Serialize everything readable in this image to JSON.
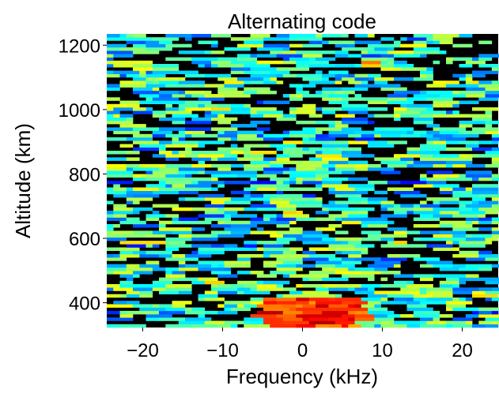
{
  "chart_data": {
    "type": "heatmap",
    "title": "Alternating code",
    "xlabel": "Frequency (kHz)",
    "ylabel": "Altitude (km)",
    "xlim": [
      -24.5,
      24.5
    ],
    "ylim": [
      323,
      1235
    ],
    "xticks": [
      -20,
      -10,
      0,
      10,
      20
    ],
    "yticks": [
      400,
      600,
      800,
      1000,
      1200
    ],
    "xtick_labels": [
      "−20",
      "−10",
      "0",
      "10",
      "20"
    ],
    "ytick_labels": [
      "400",
      "600",
      "800",
      "1000",
      "1200"
    ],
    "grid": false,
    "colormap": "jet-on-black",
    "colors": {
      "background": "#000000",
      "low": "#000080",
      "mid": "#00ffff",
      "high": "#ff0000",
      "peak": "#ffffff"
    },
    "value_range": [
      0,
      1
    ],
    "features": [
      {
        "label": "strong return near 0 kHz at lowest altitudes",
        "x": [
          -5,
          8
        ],
        "y": [
          323,
          420
        ],
        "level": 0.95
      },
      {
        "label": "bright spot",
        "x": [
          7,
          9
        ],
        "y": [
          1135,
          1150
        ],
        "level": 0.85
      },
      {
        "label": "bright spot",
        "x": [
          -2,
          0
        ],
        "y": [
          670,
          685
        ],
        "level": 0.8
      },
      {
        "label": "bright spot",
        "x": [
          -13,
          -10
        ],
        "y": [
          455,
          468
        ],
        "level": 0.75
      },
      {
        "label": "bright spot",
        "x": [
          4,
          7
        ],
        "y": [
          395,
          410
        ],
        "level": 0.8
      }
    ]
  }
}
